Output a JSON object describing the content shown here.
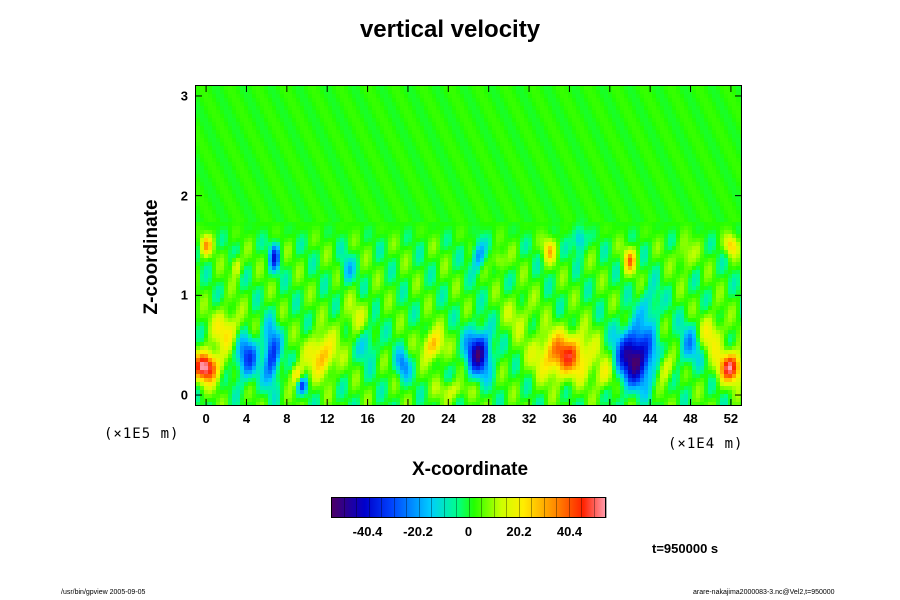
{
  "chart_data": {
    "type": "heatmap",
    "title": "vertical velocity",
    "xlabel": "X-coordinate",
    "ylabel": "Z-coordinate",
    "x_ticks": [
      "0",
      "4",
      "8",
      "12",
      "16",
      "20",
      "24",
      "28",
      "32",
      "36",
      "40",
      "44",
      "48",
      "52"
    ],
    "y_ticks": [
      "0",
      "1",
      "2",
      "3"
    ],
    "xlim": [
      -1,
      53
    ],
    "ylim": [
      -0.1,
      3.1
    ],
    "x_scale_label": "(×1E4 m)",
    "y_scale_label": "(×1E5 m)",
    "colorbar": {
      "ticks": [
        "-40.4",
        "-20.2",
        "0",
        "20.2",
        "40.4"
      ],
      "tick_values": [
        -40.4,
        -20.2,
        0,
        20.2,
        40.4
      ],
      "range": [
        -55,
        55
      ]
    },
    "features": [
      {
        "x": 0,
        "z": 0.28,
        "value": 55,
        "rx": 1.3,
        "rz": 0.15
      },
      {
        "x": 52,
        "z": 0.28,
        "value": 50,
        "rx": 1.2,
        "rz": 0.15
      },
      {
        "x": 35.5,
        "z": 0.4,
        "value": 42,
        "rx": 2.6,
        "rz": 0.22
      },
      {
        "x": 42.5,
        "z": 0.38,
        "value": -55,
        "rx": 1.8,
        "rz": 0.28
      },
      {
        "x": 27,
        "z": 0.42,
        "value": -48,
        "rx": 1.2,
        "rz": 0.22
      },
      {
        "x": 4,
        "z": 0.38,
        "value": -30,
        "rx": 1.1,
        "rz": 0.22
      },
      {
        "x": 6.5,
        "z": 0.4,
        "value": -35,
        "rx": 0.8,
        "rz": 0.28
      },
      {
        "x": 11.5,
        "z": 0.4,
        "value": 30,
        "rx": 1.4,
        "rz": 0.2
      },
      {
        "x": 9.5,
        "z": 0.1,
        "value": -28,
        "rx": 0.5,
        "rz": 0.08
      },
      {
        "x": 9,
        "z": 0.2,
        "value": 25,
        "rx": 0.6,
        "rz": 0.1
      },
      {
        "x": 22.5,
        "z": 0.5,
        "value": 30,
        "rx": 1.0,
        "rz": 0.15
      },
      {
        "x": 19.5,
        "z": 0.3,
        "value": -22,
        "rx": 0.7,
        "rz": 0.15
      },
      {
        "x": 16,
        "z": 0.55,
        "value": -15,
        "rx": 1.0,
        "rz": 0.2
      },
      {
        "x": 6.8,
        "z": 1.38,
        "value": -32,
        "rx": 0.5,
        "rz": 0.14
      },
      {
        "x": 0,
        "z": 1.5,
        "value": 28,
        "rx": 0.6,
        "rz": 0.1
      },
      {
        "x": 52,
        "z": 1.5,
        "value": 25,
        "rx": 0.6,
        "rz": 0.1
      },
      {
        "x": 42,
        "z": 1.35,
        "value": 32,
        "rx": 0.6,
        "rz": 0.12
      },
      {
        "x": 34,
        "z": 1.45,
        "value": 25,
        "rx": 0.6,
        "rz": 0.12
      },
      {
        "x": 27,
        "z": 1.4,
        "value": -22,
        "rx": 0.7,
        "rz": 0.15
      },
      {
        "x": 37,
        "z": 1.55,
        "value": -20,
        "rx": 0.6,
        "rz": 0.12
      },
      {
        "x": 3,
        "z": 1.3,
        "value": 18,
        "rx": 0.5,
        "rz": 0.1
      },
      {
        "x": 29,
        "z": 1.35,
        "value": 16,
        "rx": 0.6,
        "rz": 0.1
      },
      {
        "x": 47.5,
        "z": 1.4,
        "value": 14,
        "rx": 0.8,
        "rz": 0.15
      },
      {
        "x": 14,
        "z": 1.25,
        "value": -14,
        "rx": 0.7,
        "rz": 0.15
      },
      {
        "x": 44,
        "z": 0.9,
        "value": -14,
        "rx": 1.0,
        "rz": 0.2
      },
      {
        "x": 15,
        "z": 0.75,
        "value": 12,
        "rx": 1.5,
        "rz": 0.2
      },
      {
        "x": 31,
        "z": 0.8,
        "value": 10,
        "rx": 1.5,
        "rz": 0.2
      },
      {
        "x": 48,
        "z": 0.5,
        "value": -18,
        "rx": 1.2,
        "rz": 0.22
      },
      {
        "x": 2,
        "z": 0.65,
        "value": 22,
        "rx": 1.4,
        "rz": 0.2
      },
      {
        "x": 50,
        "z": 0.6,
        "value": 20,
        "rx": 1.2,
        "rz": 0.2
      },
      {
        "x": 24.5,
        "z": 0.05,
        "value": 14,
        "rx": 1.5,
        "rz": 0.1
      },
      {
        "x": 39.5,
        "z": 0.2,
        "value": 18,
        "rx": 1.0,
        "rz": 0.15
      },
      {
        "x": 45.5,
        "z": 0.28,
        "value": 20,
        "rx": 0.8,
        "rz": 0.15
      }
    ],
    "active_layer_top_z": 1.75
  },
  "annotations": {
    "time": "t=950000 s",
    "footer_left": "/usr/bin/gpview 2005-09-05",
    "footer_right": "arare-nakajima2000083-3.nc@Vel2,t=950000"
  }
}
